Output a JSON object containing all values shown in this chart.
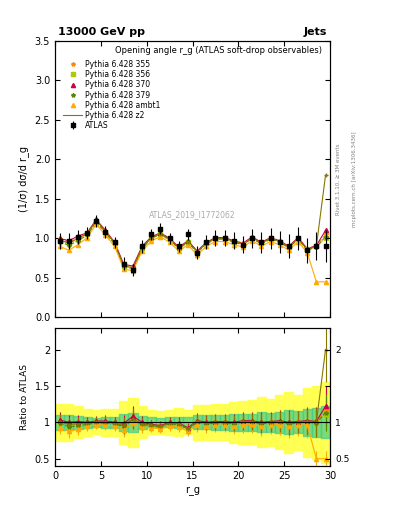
{
  "title_left": "13000 GeV pp",
  "title_right": "Jets",
  "plot_title": "Opening angle r_g (ATLAS soft-drop observables)",
  "watermark": "ATLAS_2019_I1772062",
  "ylabel_main": "(1/σ) dσ/d r_g",
  "ylabel_ratio": "Ratio to ATLAS",
  "xlabel": "r_g",
  "right_label": "Rivet 3.1.10, ≥ 3M events",
  "right_label2": "mcplots.cern.ch [arXiv:1306.3436]",
  "x": [
    0.5,
    1.5,
    2.5,
    3.5,
    4.5,
    5.5,
    6.5,
    7.5,
    8.5,
    9.5,
    10.5,
    11.5,
    12.5,
    13.5,
    14.5,
    15.5,
    16.5,
    17.5,
    18.5,
    19.5,
    20.5,
    21.5,
    22.5,
    23.5,
    24.5,
    25.5,
    26.5,
    27.5,
    28.5,
    29.5
  ],
  "atlas_y": [
    0.97,
    0.97,
    1.02,
    1.07,
    1.22,
    1.08,
    0.95,
    0.68,
    0.6,
    0.9,
    1.05,
    1.12,
    1.0,
    0.9,
    1.05,
    0.82,
    0.95,
    1.0,
    1.0,
    0.97,
    0.92,
    1.0,
    0.95,
    1.0,
    0.95,
    0.9,
    1.0,
    0.85,
    0.9,
    0.9
  ],
  "atlas_yerr": [
    0.1,
    0.1,
    0.09,
    0.08,
    0.08,
    0.08,
    0.07,
    0.08,
    0.08,
    0.08,
    0.07,
    0.07,
    0.07,
    0.07,
    0.07,
    0.08,
    0.09,
    0.1,
    0.1,
    0.11,
    0.11,
    0.12,
    0.13,
    0.13,
    0.14,
    0.15,
    0.15,
    0.16,
    0.18,
    0.2
  ],
  "p355_y": [
    0.99,
    0.95,
    1.01,
    1.05,
    1.22,
    1.08,
    0.94,
    0.65,
    0.63,
    0.88,
    1.01,
    1.06,
    0.99,
    0.88,
    0.96,
    0.83,
    0.94,
    1.0,
    1.0,
    0.96,
    0.93,
    1.01,
    0.94,
    1.0,
    0.96,
    0.89,
    1.0,
    0.86,
    0.9,
    1.05
  ],
  "p356_y": [
    0.97,
    0.93,
    0.99,
    1.06,
    1.22,
    1.08,
    0.94,
    0.65,
    0.63,
    0.88,
    1.01,
    1.06,
    0.99,
    0.88,
    0.96,
    0.83,
    0.94,
    1.0,
    1.0,
    0.96,
    0.93,
    1.01,
    0.94,
    1.0,
    0.96,
    0.89,
    1.0,
    0.86,
    0.9,
    1.0
  ],
  "p370_y": [
    1.0,
    0.97,
    1.03,
    1.07,
    1.24,
    1.1,
    0.95,
    0.67,
    0.65,
    0.9,
    1.02,
    1.07,
    1.0,
    0.89,
    0.97,
    0.84,
    0.95,
    1.01,
    1.01,
    0.97,
    0.94,
    1.02,
    0.95,
    1.01,
    0.97,
    0.9,
    1.01,
    0.87,
    0.91,
    1.1
  ],
  "p379_y": [
    0.96,
    0.91,
    0.97,
    1.04,
    1.21,
    1.07,
    0.93,
    0.64,
    0.62,
    0.87,
    1.0,
    1.05,
    0.98,
    0.87,
    0.95,
    0.82,
    0.93,
    0.99,
    0.99,
    0.95,
    0.92,
    1.0,
    0.93,
    0.99,
    0.95,
    0.88,
    0.99,
    0.85,
    0.89,
    1.02
  ],
  "pambt1_y": [
    0.9,
    0.85,
    0.92,
    1.01,
    1.18,
    1.04,
    0.9,
    0.61,
    0.59,
    0.84,
    0.97,
    1.02,
    0.95,
    0.84,
    0.92,
    0.79,
    0.9,
    0.96,
    0.96,
    0.92,
    0.89,
    0.97,
    0.9,
    0.96,
    0.92,
    0.85,
    0.96,
    0.82,
    0.45,
    0.45
  ],
  "pz2_y": [
    0.98,
    0.94,
    1.0,
    1.06,
    1.23,
    1.09,
    0.94,
    0.65,
    0.63,
    0.88,
    1.01,
    1.06,
    0.99,
    0.88,
    0.96,
    0.83,
    0.94,
    1.0,
    1.0,
    0.96,
    0.93,
    1.01,
    0.94,
    1.0,
    0.96,
    0.89,
    1.0,
    0.86,
    0.9,
    1.8
  ],
  "colors": {
    "p355": "#FF8800",
    "p356": "#AACC00",
    "p370": "#CC0044",
    "p379": "#558800",
    "pambt1": "#FFAA00",
    "pz2": "#887700"
  },
  "ylim_main": [
    0.0,
    3.5
  ],
  "ylim_ratio": [
    0.4,
    2.3
  ],
  "xlim": [
    0,
    30
  ],
  "legend_labels": [
    "ATLAS",
    "Pythia 6.428 355",
    "Pythia 6.428 356",
    "Pythia 6.428 370",
    "Pythia 6.428 379",
    "Pythia 6.428 ambt1",
    "Pythia 6.428 z2"
  ]
}
